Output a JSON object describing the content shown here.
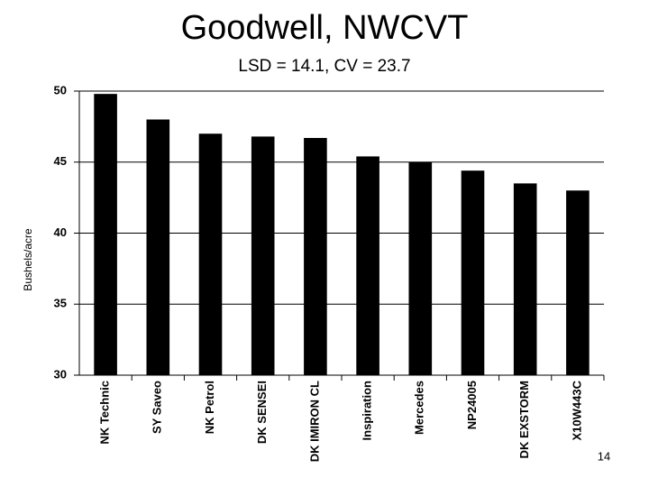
{
  "chart_data": {
    "type": "bar",
    "title": "Goodwell, NWCVT",
    "subtitle": "LSD = 14.1, CV = 23.7",
    "y_label": "Bushels/acre",
    "categories": [
      "NK Technic",
      "SY Saveo",
      "NK Petrol",
      "DK SENSEI",
      "DK IMIRON CL",
      "Inspiration",
      "Mercedes",
      "NP24005",
      "DK EXSTORM",
      "X10W443C"
    ],
    "values": [
      49.8,
      48.0,
      47.0,
      46.8,
      46.7,
      45.4,
      45.0,
      44.4,
      43.5,
      43.0
    ],
    "color": "#000000",
    "ylim": [
      30,
      50
    ],
    "yticks": [
      30,
      35,
      40,
      45,
      50
    ],
    "grid": true
  },
  "slide_number": "14"
}
